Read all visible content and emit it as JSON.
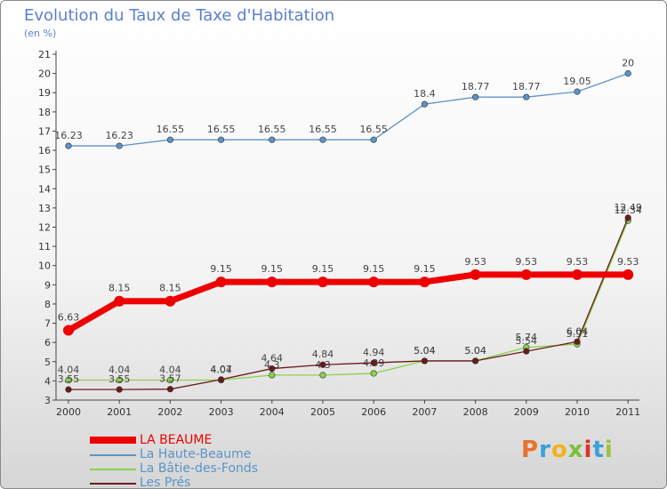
{
  "title": "Evolution du Taux de Taxe d'Habitation",
  "unit_label": "(en %)",
  "brand": {
    "letters": [
      "P",
      "r",
      "o",
      "x",
      "i",
      "t",
      "i"
    ],
    "colors": [
      "#e8722c",
      "#3aa0d8",
      "#f2b21c",
      "#7cbf3a",
      "#d8342c",
      "#3aa0d8",
      "#9ac43a"
    ]
  },
  "chart_data": {
    "type": "line",
    "title": "Evolution du Taux de Taxe d'Habitation",
    "ylabel": "(en %)",
    "xlabel": "",
    "ylim": [
      3,
      21
    ],
    "yticks": [
      "3",
      "4",
      "5",
      "6",
      "7",
      "8",
      "9",
      "10",
      "11",
      "12",
      "13",
      "14",
      "15",
      "16",
      "17",
      "18",
      "19",
      "20",
      "21"
    ],
    "categories": [
      "2000",
      "2001",
      "2002",
      "2003",
      "2004",
      "2005",
      "2006",
      "2007",
      "2008",
      "2009",
      "2010",
      "2011"
    ],
    "grid": false,
    "legend": "bottom-left",
    "series": [
      {
        "name": "La Haute-Beaume",
        "color": "#5b93c9",
        "values": [
          16.23,
          16.23,
          16.55,
          16.55,
          16.55,
          16.55,
          16.55,
          18.4,
          18.77,
          18.77,
          19.05,
          20
        ],
        "labels": [
          "16.23",
          "16.23",
          "16.55",
          "16.55",
          "16.55",
          "16.55",
          "16.55",
          "18.4",
          "18.77",
          "18.77",
          "19.05",
          "20"
        ]
      },
      {
        "name": "La Bâtie-des-Fonds",
        "color": "#8ad14a",
        "values": [
          4.04,
          4.04,
          4.04,
          4.04,
          4.3,
          4.3,
          4.39,
          5.04,
          5.04,
          5.74,
          5.91,
          12.34
        ],
        "labels": [
          "4.04",
          "4.04",
          "4.04",
          "4.04",
          "4.3",
          "4.3",
          "4.39",
          "5.04",
          "5.04",
          "5.74",
          "5.91",
          "12.34"
        ]
      },
      {
        "name": "Les Prés",
        "color": "#6b1a1a",
        "values": [
          3.55,
          3.55,
          3.57,
          4.07,
          4.64,
          4.84,
          4.94,
          5.04,
          5.04,
          5.54,
          6.04,
          12.49
        ],
        "labels": [
          "3.55",
          "3.55",
          "3.57",
          "4.07",
          "4.64",
          "4.84",
          "4.94",
          "5.04",
          "5.04",
          "5.54",
          "6.04",
          "12.49"
        ]
      },
      {
        "name": "LA BEAUME",
        "color": "#ee0000",
        "values": [
          6.63,
          8.15,
          8.15,
          9.15,
          9.15,
          9.15,
          9.15,
          9.15,
          9.53,
          9.53,
          9.53,
          9.53
        ],
        "labels": [
          "6.63",
          "8.15",
          "8.15",
          "9.15",
          "9.15",
          "9.15",
          "9.15",
          "9.15",
          "9.53",
          "9.53",
          "9.53",
          "9.53"
        ]
      }
    ]
  },
  "legend": [
    {
      "label": "LA BEAUME",
      "color": "#ee0000",
      "label_color": "#ee0000",
      "thick": true
    },
    {
      "label": "La Haute-Beaume",
      "color": "#5b93c9",
      "label_color": "#5b93c9",
      "thick": false
    },
    {
      "label": "La Bâtie-des-Fonds",
      "color": "#8ad14a",
      "label_color": "#5b93c9",
      "thick": false
    },
    {
      "label": "Les Prés",
      "color": "#6b1a1a",
      "label_color": "#5b93c9",
      "thick": false
    }
  ]
}
